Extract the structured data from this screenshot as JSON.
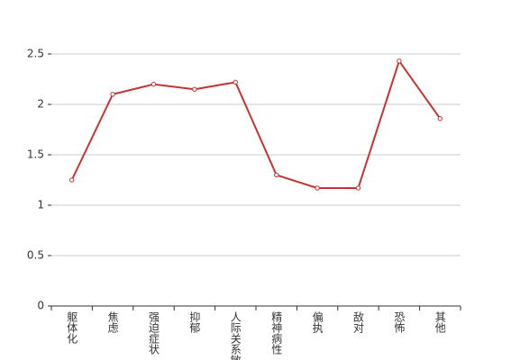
{
  "chart_data": {
    "type": "line",
    "categories": [
      "躯体化",
      "焦虑",
      "强迫症状",
      "抑郁",
      "人际关系敏感",
      "精神病性",
      "偏执",
      "敌对",
      "恐怖",
      "其他"
    ],
    "series": [
      {
        "color": "#c23531",
        "values": [
          1.25,
          2.1,
          2.2,
          2.15,
          2.22,
          1.3,
          1.17,
          1.17,
          2.43,
          1.86
        ]
      }
    ],
    "ylim": [
      0,
      2.5
    ],
    "yticks": [
      0,
      0.5,
      1,
      1.5,
      2,
      2.5
    ],
    "grid": true
  }
}
